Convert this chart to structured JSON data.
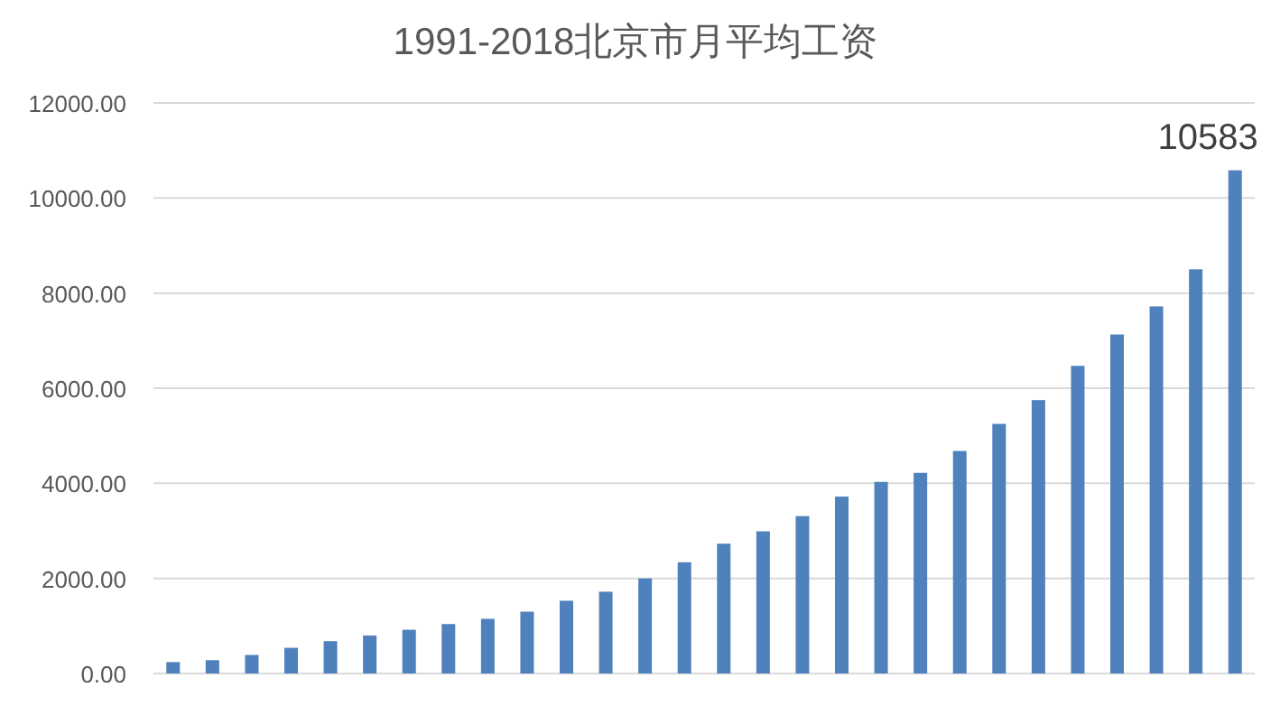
{
  "chart_data": {
    "type": "bar",
    "title": "1991-2018北京市月平均工资",
    "categories": [
      null,
      null,
      null,
      null,
      null,
      null,
      null,
      null,
      null,
      null,
      null,
      null,
      null,
      null,
      null,
      null,
      null,
      null,
      null,
      null,
      null,
      null,
      null,
      null,
      null,
      null,
      null,
      null
    ],
    "values": [
      240,
      280,
      390,
      540,
      680,
      800,
      920,
      1040,
      1150,
      1300,
      1530,
      1720,
      2000,
      2340,
      2730,
      2990,
      3310,
      3720,
      4030,
      4220,
      4680,
      5250,
      5750,
      6470,
      7130,
      7720,
      8500,
      10583
    ],
    "value_labels": [
      null,
      null,
      null,
      null,
      null,
      null,
      null,
      null,
      null,
      null,
      null,
      null,
      null,
      null,
      null,
      null,
      null,
      null,
      null,
      null,
      null,
      null,
      null,
      null,
      null,
      null,
      null,
      "10583"
    ],
    "color": "#4f81bd",
    "ylim": [
      0,
      12000
    ],
    "yticks": [
      {
        "value": 0,
        "label": "0.00"
      },
      {
        "value": 2000,
        "label": "2000.00"
      },
      {
        "value": 4000,
        "label": "4000.00"
      },
      {
        "value": 6000,
        "label": "6000.00"
      },
      {
        "value": 8000,
        "label": "8000.00"
      },
      {
        "value": 10000,
        "label": "10000.00"
      },
      {
        "value": 12000,
        "label": "12000.00"
      }
    ],
    "grid": "y"
  }
}
